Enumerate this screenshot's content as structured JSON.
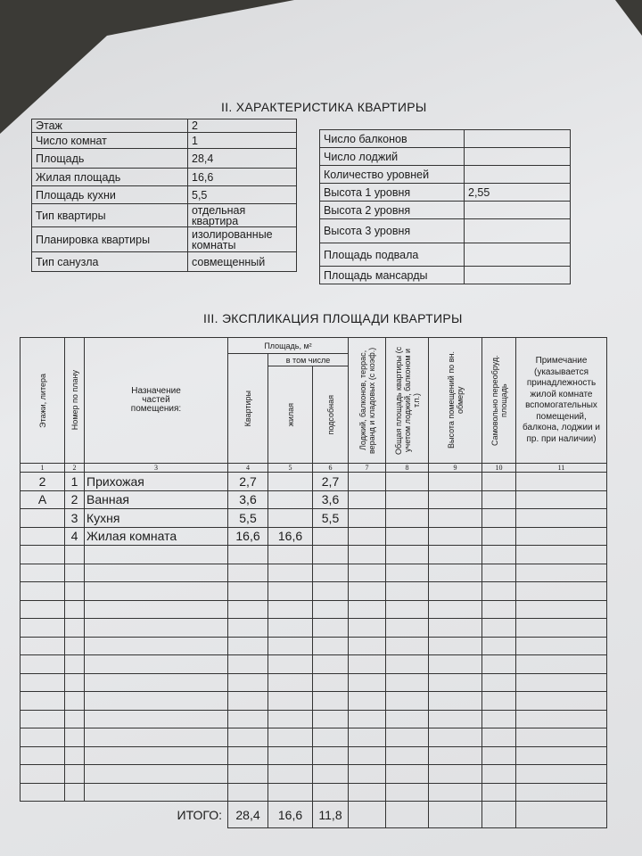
{
  "section2": {
    "title": "II. ХАРАКТЕРИСТИКА КВАРТИРЫ",
    "left_table": [
      {
        "label": "Этаж",
        "value": "2"
      },
      {
        "label": "Число комнат",
        "value": "1"
      },
      {
        "label": "Площадь",
        "value": "28,4"
      },
      {
        "label": "Жилая площадь",
        "value": "16,6"
      },
      {
        "label": "Площадь кухни",
        "value": "5,5"
      },
      {
        "label": "Тип квартиры",
        "value": "отдельная квартира"
      },
      {
        "label": "Планировка квартиры",
        "value": "изолированные комнаты"
      },
      {
        "label": "Тип санузла",
        "value": "совмещенный"
      }
    ],
    "right_table": [
      {
        "label": "Число балконов"
      },
      {
        "label": "Число лоджий"
      },
      {
        "label": "Количество уровней"
      },
      {
        "label": "Высота 1 уровня",
        "value": "2,55"
      },
      {
        "label": "Высота 2 уровня"
      },
      {
        "label": "Высота 3 уровня"
      },
      {
        "label": "Площадь подвала"
      },
      {
        "label": "Площадь мансарды"
      }
    ]
  },
  "section3": {
    "title": "III. ЭКСПЛИКАЦИЯ ПЛОЩАДИ КВАРТИРЫ",
    "headers": {
      "floor": "Этажи, литера",
      "number": "Номер по плану",
      "purpose": "Назначение частей помещения:",
      "area": "Площадь, м²",
      "apartment": "Квартиры",
      "including": "в том числе",
      "living": "жилая",
      "auxiliary": "подсобная",
      "loggias": "Лоджий, балконов, террас, веранд и кладовых (с коэф.)",
      "total_area": "Общая площадь квартиры (с учетом лоджий, балконом и т.п.)",
      "height": "Высота помещений по вн. обмеру",
      "unauthorized": "Самовольно переобруд. площадь",
      "note": "Примечание (указывается принадлежность жилой комнате вспомогательных помещений, балкона, лоджии и пр. при наличии)"
    },
    "column_numbers": [
      1,
      2,
      3,
      4,
      5,
      6,
      7,
      8,
      9,
      10,
      11
    ],
    "rows": [
      {
        "floor": "2",
        "number": "1",
        "name": "Прихожая",
        "apartment": "2,7",
        "auxiliary": "2,7"
      },
      {
        "floor": "А",
        "number": "2",
        "name": "Ванная",
        "apartment": "3,6",
        "auxiliary": "3,6"
      },
      {
        "number": "3",
        "name": "Кухня",
        "apartment": "5,5",
        "auxiliary": "5,5"
      },
      {
        "number": "4",
        "name": "Жилая комната",
        "apartment": "16,6",
        "living": "16,6"
      }
    ],
    "total": {
      "label": "ИТОГО:",
      "apartment": "28,4",
      "living": "16,6",
      "auxiliary": "11,8"
    }
  }
}
